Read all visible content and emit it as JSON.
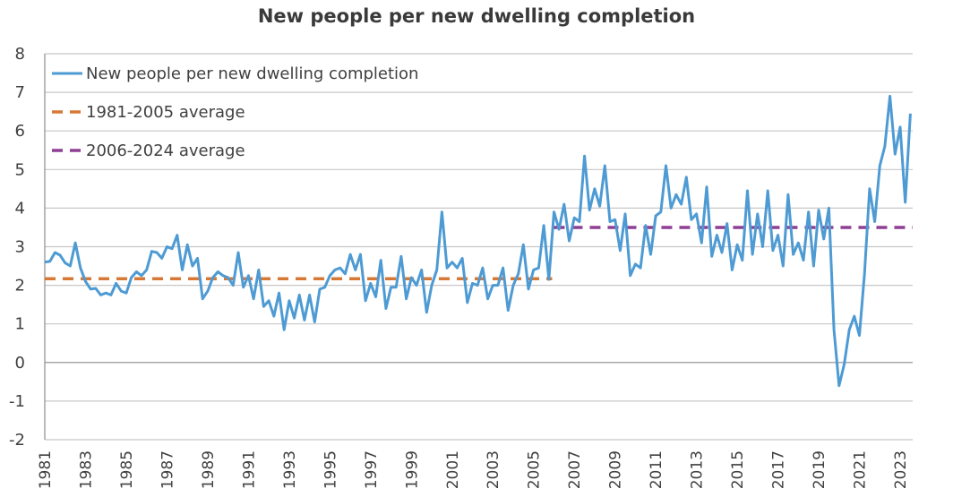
{
  "chart_data": {
    "type": "line",
    "title": "New people per new dwelling completion",
    "xlabel": "",
    "ylabel": "",
    "ylim": [
      -2,
      8
    ],
    "yticks": [
      "8",
      "7",
      "6",
      "5",
      "4",
      "3",
      "2",
      "1",
      "0",
      "-1",
      "-2"
    ],
    "ytick_values": [
      8,
      7,
      6,
      5,
      4,
      3,
      2,
      1,
      0,
      -1,
      -2
    ],
    "xtick_labels": [
      "1981",
      "1983",
      "1985",
      "1987",
      "1989",
      "1991",
      "1993",
      "1995",
      "1997",
      "1999",
      "2001",
      "2003",
      "2005",
      "2007",
      "2009",
      "2011",
      "2013",
      "2015",
      "2017",
      "2019",
      "2021",
      "2023"
    ],
    "x_start_year": 1981,
    "frequency": "quarterly",
    "grid": true,
    "legend_position": "top-left",
    "series": [
      {
        "name": "New people per new dwelling completion",
        "color": "#4e9bd4",
        "style": "solid",
        "values": [
          2.6,
          2.62,
          2.85,
          2.78,
          2.58,
          2.5,
          3.1,
          2.45,
          2.1,
          1.9,
          1.92,
          1.75,
          1.8,
          1.75,
          2.05,
          1.85,
          1.8,
          2.2,
          2.35,
          2.25,
          2.4,
          2.88,
          2.85,
          2.7,
          3.0,
          2.95,
          3.3,
          2.4,
          3.05,
          2.5,
          2.7,
          1.65,
          1.85,
          2.2,
          2.35,
          2.25,
          2.2,
          2.0,
          2.85,
          1.95,
          2.25,
          1.65,
          2.4,
          1.45,
          1.6,
          1.2,
          1.8,
          0.85,
          1.6,
          1.15,
          1.75,
          1.1,
          1.75,
          1.05,
          1.9,
          1.95,
          2.25,
          2.4,
          2.45,
          2.3,
          2.8,
          2.4,
          2.8,
          1.6,
          2.05,
          1.7,
          2.65,
          1.4,
          1.95,
          1.95,
          2.75,
          1.65,
          2.2,
          2.0,
          2.4,
          1.3,
          2.0,
          2.4,
          3.9,
          2.45,
          2.6,
          2.45,
          2.7,
          1.55,
          2.05,
          2.0,
          2.45,
          1.65,
          2.0,
          2.0,
          2.45,
          1.35,
          2.0,
          2.3,
          3.05,
          1.9,
          2.4,
          2.45,
          3.55,
          2.15,
          3.9,
          3.45,
          4.1,
          3.15,
          3.75,
          3.65,
          5.35,
          3.95,
          4.5,
          4.05,
          5.1,
          3.65,
          3.7,
          2.9,
          3.85,
          2.25,
          2.55,
          2.45,
          3.55,
          2.8,
          3.8,
          3.9,
          5.1,
          4.0,
          4.35,
          4.1,
          4.8,
          3.7,
          3.85,
          3.1,
          4.55,
          2.75,
          3.3,
          2.85,
          3.6,
          2.4,
          3.05,
          2.65,
          4.45,
          2.8,
          3.85,
          3.0,
          4.45,
          2.9,
          3.3,
          2.5,
          4.35,
          2.8,
          3.1,
          2.65,
          3.9,
          2.5,
          3.95,
          3.2,
          4.0,
          0.85,
          -0.6,
          -0.05,
          0.85,
          1.2,
          0.7,
          2.3,
          4.5,
          3.65,
          5.1,
          5.6,
          6.9,
          5.4,
          6.1,
          4.15,
          6.45
        ]
      },
      {
        "name": "1981-2005 average",
        "color": "#d77936",
        "style": "dashed",
        "value": 2.17,
        "range": [
          "1981",
          "2005"
        ]
      },
      {
        "name": "2006-2024 average",
        "color": "#8e3f93",
        "style": "dashed",
        "value": 3.5,
        "range": [
          "2006",
          "2024"
        ]
      }
    ]
  }
}
